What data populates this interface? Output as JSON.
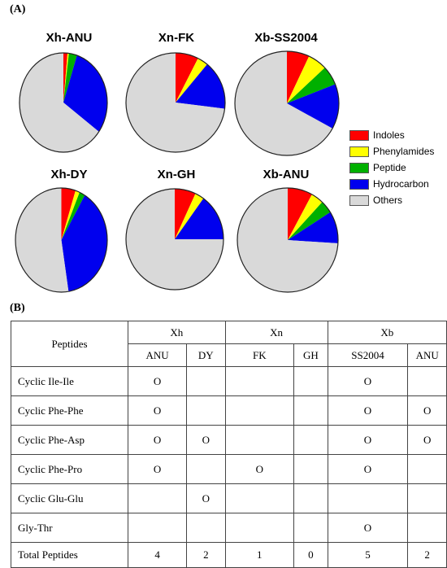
{
  "panel_a_label": "(A)",
  "panel_b_label": "(B)",
  "colors": {
    "Indoles": "#ff0000",
    "Phenylamides": "#ffff00",
    "Peptide": "#00b000",
    "Hydrocarbon": "#0000ee",
    "Others": "#d9d9d9"
  },
  "legend": {
    "items": [
      {
        "label": "Indoles",
        "color": "#ff0000"
      },
      {
        "label": "Phenylamides",
        "color": "#ffff00"
      },
      {
        "label": "Peptide",
        "color": "#00b000"
      },
      {
        "label": "Hydrocarbon",
        "color": "#0000ee"
      },
      {
        "label": "Others",
        "color": "#d9d9d9"
      }
    ]
  },
  "chart_data": [
    {
      "type": "pie",
      "title": "Xh-ANU",
      "labels": [
        "Indoles",
        "Phenylamides",
        "Peptide",
        "Hydrocarbon",
        "Others"
      ],
      "values": [
        1.5,
        0.5,
        3,
        30,
        65
      ]
    },
    {
      "type": "pie",
      "title": "Xn-FK",
      "labels": [
        "Indoles",
        "Phenylamides",
        "Peptide",
        "Hydrocarbon",
        "Others"
      ],
      "values": [
        7.5,
        3.5,
        0,
        16,
        73
      ]
    },
    {
      "type": "pie",
      "title": "Xb-SS2004",
      "labels": [
        "Indoles",
        "Phenylamides",
        "Peptide",
        "Hydrocarbon",
        "Others"
      ],
      "values": [
        7,
        6,
        6,
        14,
        67
      ]
    },
    {
      "type": "pie",
      "title": "Xh-DY",
      "labels": [
        "Indoles",
        "Phenylamides",
        "Peptide",
        "Hydrocarbon",
        "Others"
      ],
      "values": [
        5,
        1.5,
        2,
        39,
        52.5
      ]
    },
    {
      "type": "pie",
      "title": "Xn-GH",
      "labels": [
        "Indoles",
        "Phenylamides",
        "Peptide",
        "Hydrocarbon",
        "Others"
      ],
      "values": [
        7,
        3,
        0,
        15,
        75
      ]
    },
    {
      "type": "pie",
      "title": "Xb-ANU",
      "labels": [
        "Indoles",
        "Phenylamides",
        "Peptide",
        "Hydrocarbon",
        "Others"
      ],
      "values": [
        8,
        4,
        4,
        10,
        74
      ]
    },
    {
      "type": "table",
      "header": {
        "corner": "Peptides",
        "groups": [
          {
            "label": "Xh",
            "columns": [
              "ANU",
              "DY"
            ]
          },
          {
            "label": "Xn",
            "columns": [
              "FK",
              "GH"
            ]
          },
          {
            "label": "Xb",
            "columns": [
              "SS2004",
              "ANU"
            ]
          }
        ]
      },
      "rows": [
        {
          "label": "Cyclic Ile-Ile",
          "cells": [
            "O",
            "",
            "",
            "",
            "O",
            ""
          ]
        },
        {
          "label": "Cyclic Phe-Phe",
          "cells": [
            "O",
            "",
            "",
            "",
            "O",
            "O"
          ]
        },
        {
          "label": "Cyclic Phe-Asp",
          "cells": [
            "O",
            "O",
            "",
            "",
            "O",
            "O"
          ]
        },
        {
          "label": "Cyclic Phe-Pro",
          "cells": [
            "O",
            "",
            "O",
            "",
            "O",
            ""
          ]
        },
        {
          "label": "Cyclic Glu-Glu",
          "cells": [
            "",
            "O",
            "",
            "",
            "",
            ""
          ]
        },
        {
          "label": "Gly-Thr",
          "cells": [
            "",
            "",
            "",
            "",
            "O",
            ""
          ]
        },
        {
          "label": "Total Peptides",
          "cells": [
            "4",
            "2",
            "1",
            "0",
            "5",
            "2"
          ]
        }
      ]
    }
  ]
}
